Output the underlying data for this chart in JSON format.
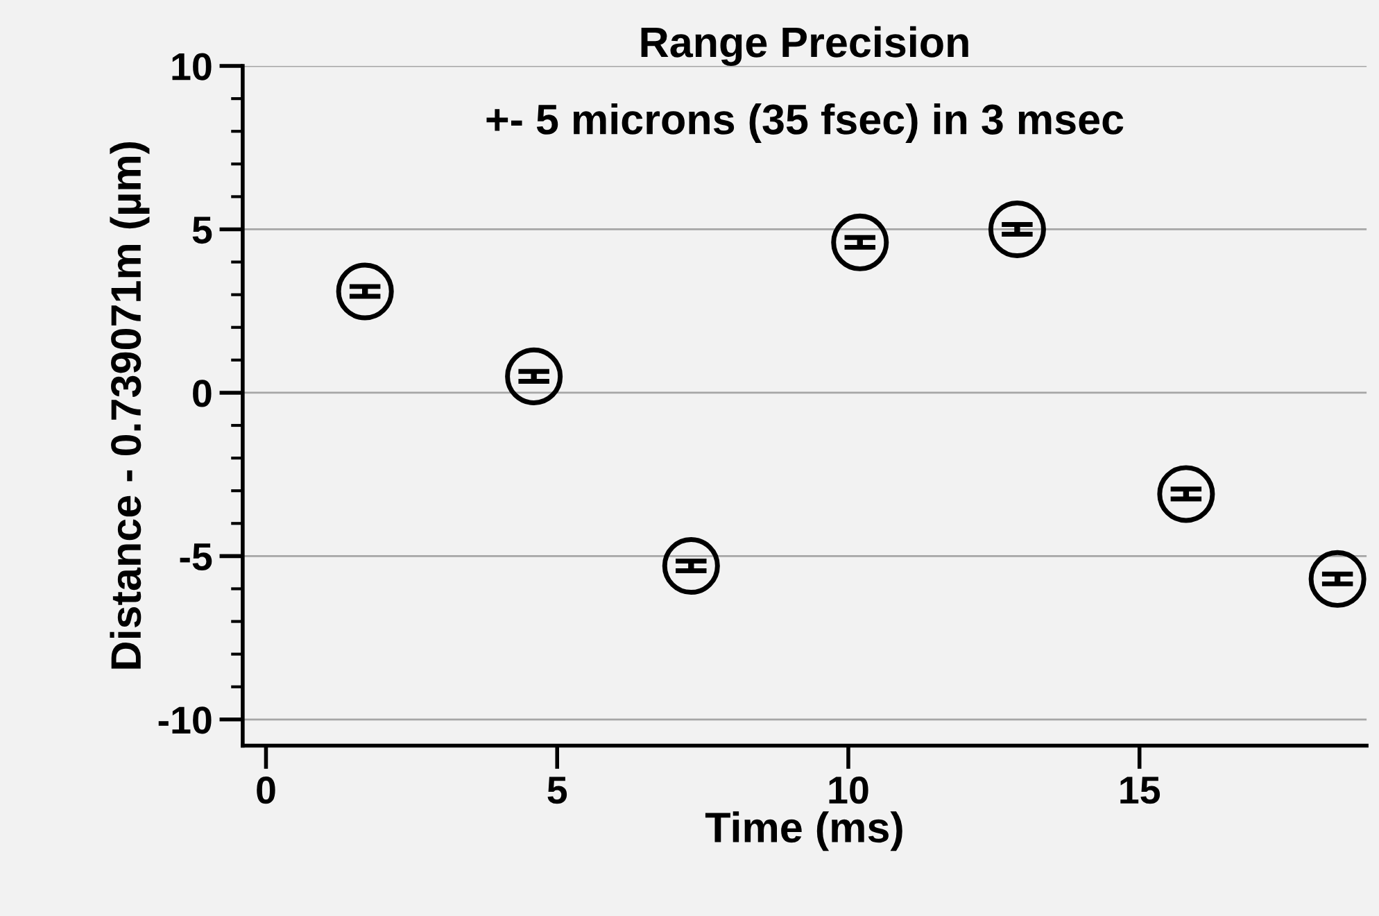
{
  "chart_data": {
    "type": "scatter",
    "title": "Range Precision",
    "subtitle": "+- 5 microns (35 fsec) in 3 msec",
    "xlabel": "Time (ms)",
    "ylabel": "Distance - 0.739071m (µm)",
    "x": [
      1.7,
      4.6,
      7.3,
      10.2,
      12.9,
      15.8,
      18.4
    ],
    "series": [
      {
        "color": "#000000",
        "values": [
          3.1,
          0.5,
          -5.3,
          4.6,
          5.0,
          -3.1,
          -5.7
        ],
        "errors": [
          0.15,
          0.15,
          0.15,
          0.15,
          0.15,
          0.15,
          0.15
        ]
      }
    ],
    "xlim": [
      -0.4,
      18.9
    ],
    "ylim": [
      -10.8,
      10
    ],
    "xticks": [
      0,
      5,
      10,
      15
    ],
    "yticks": [
      -10,
      -5,
      0,
      5,
      10
    ],
    "grid": "y",
    "marker": "circle",
    "legend": false
  }
}
